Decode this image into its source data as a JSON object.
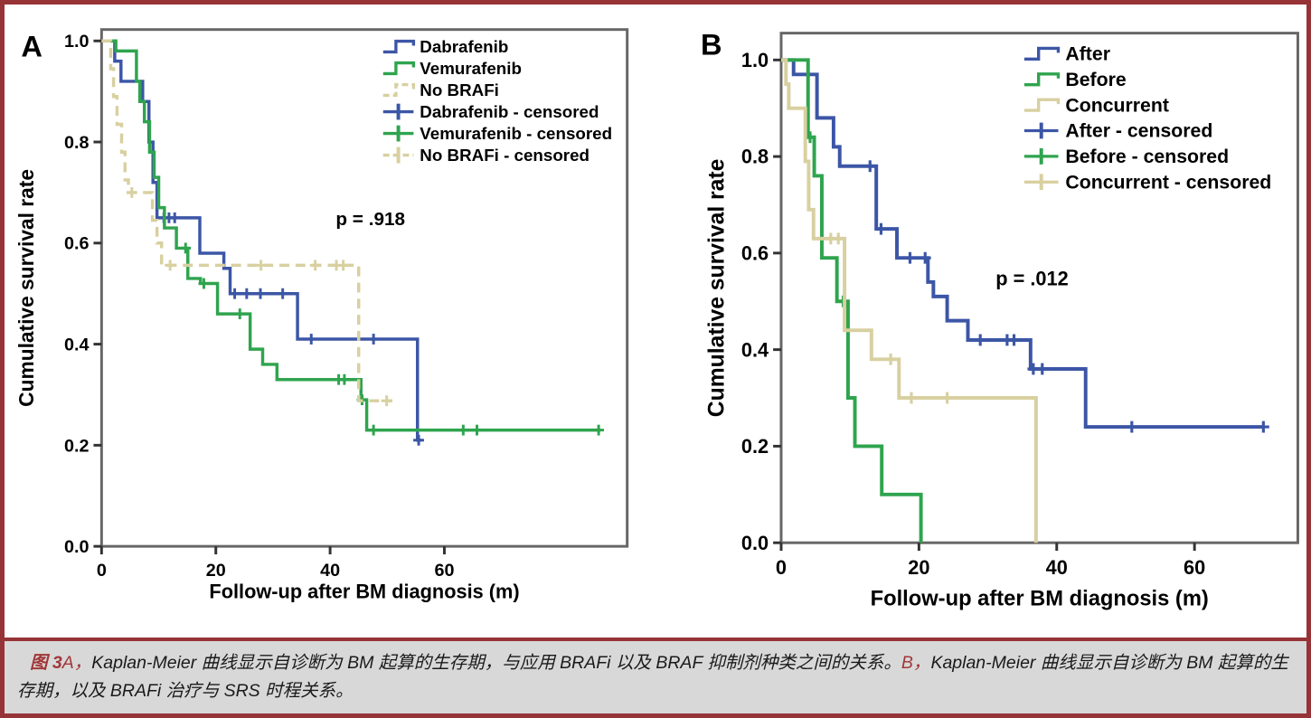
{
  "colors": {
    "maroon_border": "#963336",
    "maroon_text": "#a23638",
    "caption_bg": "#d8d8d8",
    "axis_gray": "#666666",
    "blue": "#3c56a6",
    "green": "#2fa44e",
    "tan": "#d8d0a0"
  },
  "caption": {
    "fig_label": "图 3",
    "a_label": "A，",
    "a_text": "Kaplan-Meier 曲线显示自诊断为 BM 起算的生存期，与应用 BRAFi 以及 BRAF 抑制剂种类之间的关系。",
    "b_label": "B，",
    "b_text": "Kaplan-Meier 曲线显示自诊断为 BM 起算的生存期，以及 BRAFi 治疗与 SRS 时程关系。"
  },
  "chart_data": [
    {
      "type": "line",
      "subtype": "kaplan-meier-step",
      "panel_label": "A",
      "xlabel": "Follow-up after BM diagnosis (m)",
      "ylabel": "Cumulative survival rate",
      "p_label": "p = .918",
      "xlim": [
        0,
        92
      ],
      "ylim": [
        0,
        1.0
      ],
      "xticks": [
        0,
        20,
        40,
        60
      ],
      "yticks": [
        0,
        0.2,
        0.4,
        0.6,
        0.8,
        1.0
      ],
      "ytick_labels": [
        "0.0",
        "0.2",
        "0.4",
        "0.6",
        "0.8",
        "1.0"
      ],
      "grid": false,
      "legend_position": "top-right-inside",
      "series": [
        {
          "name": "Dabrafenib",
          "color": "#3c56a6",
          "dash": false,
          "steps": [
            [
              0,
              1
            ],
            [
              2.3,
              0.96
            ],
            [
              3.4,
              0.92
            ],
            [
              7.2,
              0.88
            ],
            [
              8.3,
              0.8
            ],
            [
              9,
              0.72
            ],
            [
              9.7,
              0.65
            ],
            [
              17.2,
              0.58
            ],
            [
              21.4,
              0.55
            ],
            [
              22.5,
              0.5
            ],
            [
              34.3,
              0.41
            ],
            [
              55.3,
              0.21
            ]
          ],
          "end": 56,
          "censors": [
            [
              10.9,
              0.65
            ],
            [
              11.8,
              0.65
            ],
            [
              12.8,
              0.65
            ],
            [
              23.3,
              0.5
            ],
            [
              25.4,
              0.5
            ],
            [
              27.8,
              0.5
            ],
            [
              31.7,
              0.5
            ],
            [
              36.7,
              0.41
            ],
            [
              47.6,
              0.41
            ],
            [
              55.5,
              0.21
            ]
          ]
        },
        {
          "name": "Vemurafenib",
          "color": "#2fa44e",
          "dash": false,
          "steps": [
            [
              0,
              1
            ],
            [
              2.5,
              0.98
            ],
            [
              6.1,
              0.92
            ],
            [
              6.7,
              0.88
            ],
            [
              7.5,
              0.84
            ],
            [
              8.4,
              0.78
            ],
            [
              9.2,
              0.73
            ],
            [
              10,
              0.67
            ],
            [
              11,
              0.63
            ],
            [
              13.1,
              0.59
            ],
            [
              15.1,
              0.53
            ],
            [
              17.3,
              0.52
            ],
            [
              20.3,
              0.46
            ],
            [
              26,
              0.39
            ],
            [
              28.2,
              0.36
            ],
            [
              30.7,
              0.33
            ],
            [
              45.4,
              0.29
            ],
            [
              46.4,
              0.23
            ]
          ],
          "end": 87.3,
          "censors": [
            [
              14.7,
              0.59
            ],
            [
              17.9,
              0.52
            ],
            [
              24.2,
              0.46
            ],
            [
              41.5,
              0.33
            ],
            [
              42.5,
              0.33
            ],
            [
              45.6,
              0.29
            ],
            [
              47.6,
              0.23
            ],
            [
              63.3,
              0.23
            ],
            [
              65.7,
              0.23
            ],
            [
              87,
              0.23
            ]
          ]
        },
        {
          "name": "No BRAFi",
          "color": "#d8d0a0",
          "dash": true,
          "steps": [
            [
              0,
              1
            ],
            [
              1.6,
              0.945
            ],
            [
              2.1,
              0.89
            ],
            [
              2.7,
              0.835
            ],
            [
              3.5,
              0.78
            ],
            [
              4.1,
              0.725
            ],
            [
              4.7,
              0.7
            ],
            [
              8.9,
              0.645
            ],
            [
              9.7,
              0.6
            ],
            [
              10.5,
              0.556
            ],
            [
              45,
              0.288
            ]
          ],
          "end": 50.9,
          "censors": [
            [
              5.3,
              0.7
            ],
            [
              12,
              0.556
            ],
            [
              27.9,
              0.556
            ],
            [
              37.4,
              0.556
            ],
            [
              41.1,
              0.556
            ],
            [
              42.3,
              0.556
            ],
            [
              49.9,
              0.288
            ]
          ]
        }
      ],
      "legend": [
        {
          "label": "Dabrafenib",
          "series": 0,
          "type": "step"
        },
        {
          "label": "Vemurafenib",
          "series": 1,
          "type": "step"
        },
        {
          "label": "No BRAFi",
          "series": 2,
          "type": "step"
        },
        {
          "label": "Dabrafenib - censored",
          "series": 0,
          "type": "plus"
        },
        {
          "label": "Vemurafenib - censored",
          "series": 1,
          "type": "plus"
        },
        {
          "label": "No BRAFi - censored",
          "series": 2,
          "type": "plus"
        }
      ]
    },
    {
      "type": "line",
      "subtype": "kaplan-meier-step",
      "panel_label": "B",
      "xlabel": "Follow-up after BM diagnosis (m)",
      "ylabel": "Cumulative survival rate",
      "p_label": "p = .012",
      "xlim": [
        0,
        75
      ],
      "ylim": [
        0,
        1.0
      ],
      "xticks": [
        0,
        20,
        40,
        60
      ],
      "yticks": [
        0,
        0.2,
        0.4,
        0.6,
        0.8,
        1.0
      ],
      "ytick_labels": [
        "0.0",
        "0.2",
        "0.4",
        "0.6",
        "0.8",
        "1.0"
      ],
      "grid": false,
      "legend_position": "top-right-inside",
      "series": [
        {
          "name": "After",
          "color": "#3c56a6",
          "dash": false,
          "steps": [
            [
              0,
              1
            ],
            [
              1.8,
              0.97
            ],
            [
              5.2,
              0.88
            ],
            [
              7.6,
              0.82
            ],
            [
              8.5,
              0.78
            ],
            [
              13.8,
              0.65
            ],
            [
              16.8,
              0.59
            ],
            [
              21.3,
              0.54
            ],
            [
              22.1,
              0.51
            ],
            [
              24.1,
              0.46
            ],
            [
              27.1,
              0.42
            ],
            [
              36.2,
              0.36
            ],
            [
              44.2,
              0.24
            ]
          ],
          "end": 70,
          "censors": [
            [
              12.9,
              0.78
            ],
            [
              14.5,
              0.65
            ],
            [
              18.7,
              0.59
            ],
            [
              20.9,
              0.59
            ],
            [
              28.9,
              0.42
            ],
            [
              32.8,
              0.42
            ],
            [
              33.8,
              0.42
            ],
            [
              36.6,
              0.36
            ],
            [
              37.9,
              0.36
            ],
            [
              50.9,
              0.24
            ],
            [
              70,
              0.24
            ]
          ]
        },
        {
          "name": "Before",
          "color": "#2fa44e",
          "dash": false,
          "steps": [
            [
              0,
              1
            ],
            [
              3.9,
              0.84
            ],
            [
              4.8,
              0.76
            ],
            [
              5.9,
              0.59
            ],
            [
              8.1,
              0.5
            ],
            [
              9.7,
              0.3
            ],
            [
              10.7,
              0.2
            ],
            [
              14.6,
              0.1
            ],
            [
              20.3,
              0
            ]
          ],
          "end": 20.3,
          "censors": [
            [
              4.2,
              0.84
            ],
            [
              9,
              0.5
            ]
          ]
        },
        {
          "name": "Concurrent",
          "color": "#d8d0a0",
          "dash": false,
          "steps": [
            [
              0,
              1
            ],
            [
              0.7,
              0.95
            ],
            [
              1.1,
              0.9
            ],
            [
              3.5,
              0.79
            ],
            [
              4,
              0.69
            ],
            [
              4.7,
              0.63
            ],
            [
              9.2,
              0.44
            ],
            [
              13.1,
              0.38
            ],
            [
              17.1,
              0.3
            ],
            [
              37,
              0
            ]
          ],
          "end": 37,
          "censors": [
            [
              7.2,
              0.63
            ],
            [
              8.3,
              0.63
            ],
            [
              15.9,
              0.38
            ],
            [
              18.9,
              0.3
            ],
            [
              24.1,
              0.3
            ]
          ]
        }
      ],
      "legend": [
        {
          "label": "After",
          "series": 0,
          "type": "step"
        },
        {
          "label": "Before",
          "series": 1,
          "type": "step"
        },
        {
          "label": "Concurrent",
          "series": 2,
          "type": "step"
        },
        {
          "label": "After - censored",
          "series": 0,
          "type": "plus"
        },
        {
          "label": "Before - censored",
          "series": 1,
          "type": "plus"
        },
        {
          "label": "Concurrent - censored",
          "series": 2,
          "type": "plus"
        }
      ]
    }
  ]
}
